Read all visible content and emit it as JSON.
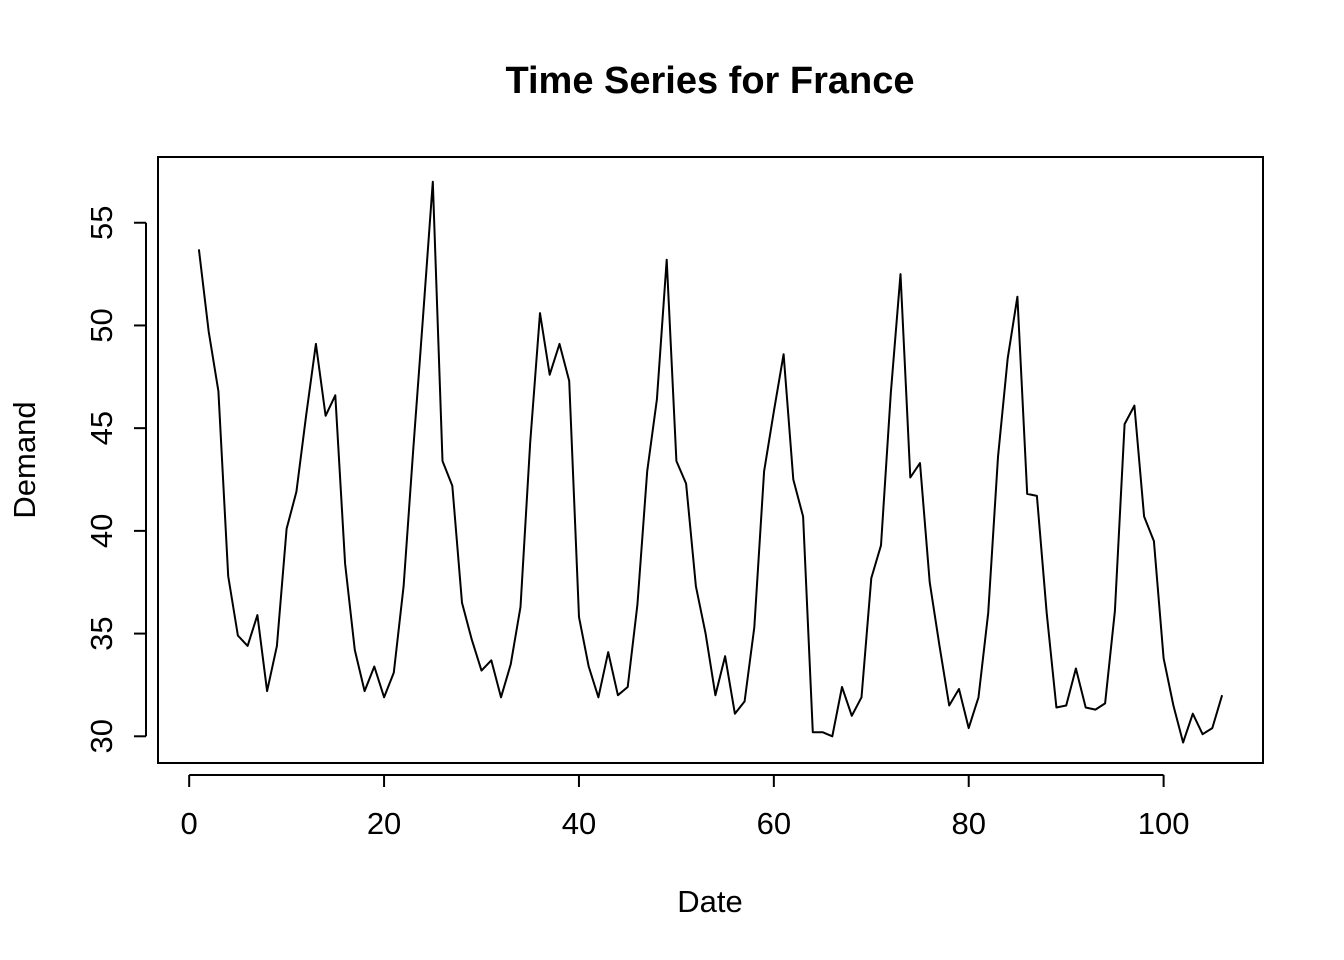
{
  "chart_data": {
    "type": "line",
    "title": "Time Series for France",
    "xlabel": "Date",
    "ylabel": "Demand",
    "xlim": [
      -3.2,
      110.2
    ],
    "ylim": [
      28.7,
      58.2
    ],
    "x_ticks": [
      0,
      20,
      40,
      60,
      80,
      100
    ],
    "y_ticks": [
      30,
      35,
      40,
      45,
      50,
      55
    ],
    "grid": false,
    "legend": "none",
    "line_color": "#000000",
    "series": [
      {
        "x": [
          1,
          2,
          3,
          4,
          5,
          6,
          7,
          8,
          9,
          10,
          11,
          12,
          13,
          14,
          15,
          16,
          17,
          18,
          19,
          20,
          21,
          22,
          23,
          24,
          25,
          26,
          27,
          28,
          29,
          30,
          31,
          32,
          33,
          34,
          35,
          36,
          37,
          38,
          39,
          40,
          41,
          42,
          43,
          44,
          45,
          46,
          47,
          48,
          49,
          50,
          51,
          52,
          53,
          54,
          55,
          56,
          57,
          58,
          59,
          60,
          61,
          62,
          63,
          64,
          65,
          66,
          67,
          68,
          69,
          70,
          71,
          72,
          73,
          74,
          75,
          76,
          77,
          78,
          79,
          80,
          81,
          82,
          83,
          84,
          85,
          86,
          87,
          88,
          89,
          90,
          91,
          92,
          93,
          94,
          95,
          96,
          97,
          98,
          99,
          100,
          101,
          102,
          103,
          104,
          105,
          106
        ],
        "values": [
          53.7,
          49.7,
          46.8,
          37.8,
          34.9,
          34.4,
          35.9,
          32.2,
          34.4,
          40.1,
          41.9,
          45.6,
          49.1,
          45.6,
          46.6,
          38.4,
          34.2,
          32.2,
          33.4,
          31.9,
          33.1,
          37.3,
          44.0,
          50.4,
          57.0,
          43.4,
          42.2,
          36.5,
          34.7,
          33.2,
          33.7,
          31.9,
          33.5,
          36.3,
          44.3,
          50.6,
          47.6,
          49.1,
          47.3,
          35.8,
          33.4,
          31.9,
          34.1,
          32.0,
          32.4,
          36.4,
          42.9,
          46.4,
          53.2,
          43.4,
          42.3,
          37.3,
          35.0,
          32.0,
          33.9,
          31.1,
          31.7,
          35.3,
          42.9,
          45.8,
          48.6,
          42.5,
          40.7,
          30.2,
          30.2,
          30.0,
          32.4,
          31.0,
          31.9,
          37.7,
          39.3,
          46.7,
          52.5,
          42.6,
          43.3,
          37.5,
          34.4,
          31.5,
          32.3,
          30.4,
          31.9,
          36.0,
          43.6,
          48.4,
          51.4,
          41.8,
          41.7,
          36.0,
          31.4,
          31.5,
          33.3,
          31.4,
          31.3,
          31.6,
          36.1,
          45.2,
          46.1,
          40.7,
          39.5,
          33.8,
          31.5,
          29.7,
          31.1,
          30.1,
          30.4,
          32.0
        ]
      }
    ]
  }
}
